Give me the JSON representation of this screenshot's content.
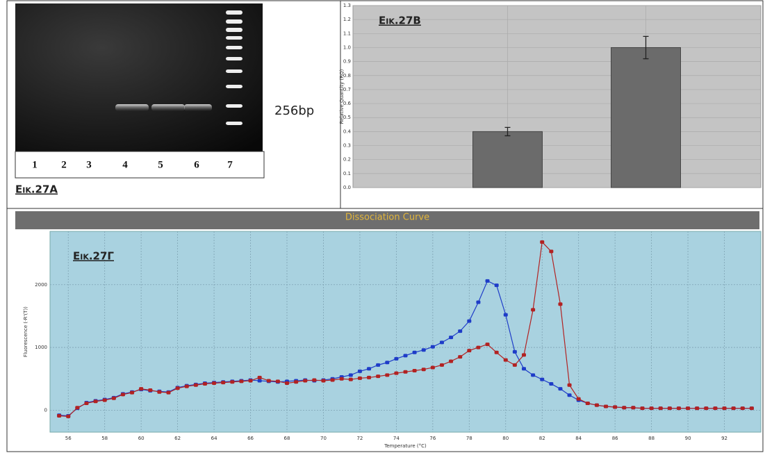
{
  "panels": {
    "gel": {
      "label": "Εικ.27Α",
      "lanes": [
        "1",
        "2",
        "3",
        "4",
        "5",
        "6",
        "7"
      ],
      "band_label": "256bp"
    }
  },
  "chart_data": [
    {
      "type": "bar",
      "label": "Εικ.27Β",
      "ylabel": "Relative Quantity (RQ)",
      "categories": [
        null,
        null
      ],
      "values": [
        0.4,
        1.0
      ],
      "errors": [
        0.03,
        0.08
      ],
      "color": "#6b6b6b",
      "ylim": [
        0,
        1.3
      ],
      "yticks": [
        {
          "value": 0,
          "label": "0.0"
        },
        0.1,
        0.2,
        0.3,
        0.4,
        0.5,
        0.6,
        0.7,
        0.8,
        0.9,
        {
          "value": 1,
          "label": "1.0"
        },
        1.1,
        1.2,
        1.3
      ],
      "grid": true
    },
    {
      "type": "line",
      "label": "Εικ.27Γ",
      "title": "Dissociation Curve",
      "xlabel": "Temperature (°C)",
      "ylabel": "Fluorescence (-R'(T))",
      "x": [
        55.5,
        56,
        56.5,
        57,
        57.5,
        58,
        58.5,
        59,
        59.5,
        60,
        60.5,
        61,
        61.5,
        62,
        62.5,
        63,
        63.5,
        64,
        64.5,
        65,
        65.5,
        66,
        66.5,
        67,
        67.5,
        68,
        68.5,
        69,
        69.5,
        70,
        70.5,
        71,
        71.5,
        72,
        72.5,
        73,
        73.5,
        74,
        74.5,
        75,
        75.5,
        76,
        76.5,
        77,
        77.5,
        78,
        78.5,
        79,
        79.5,
        80,
        80.5,
        81,
        81.5,
        82,
        82.5,
        83,
        83.5,
        84,
        84.5,
        85,
        85.5,
        86,
        86.5,
        87,
        87.5,
        88,
        88.5,
        89,
        89.5,
        90,
        90.5,
        91,
        91.5,
        92,
        92.5,
        93,
        93.5
      ],
      "series": [
        {
          "color": "#1e3cc8",
          "values": [
            -80,
            -90,
            30,
            120,
            150,
            170,
            200,
            260,
            290,
            330,
            310,
            300,
            290,
            360,
            390,
            410,
            430,
            440,
            450,
            460,
            470,
            480,
            470,
            460,
            450,
            460,
            470,
            480,
            470,
            480,
            500,
            530,
            560,
            620,
            660,
            720,
            760,
            820,
            870,
            920,
            960,
            1010,
            1080,
            1160,
            1260,
            1420,
            1720,
            2060,
            1990,
            1520,
            930,
            660,
            560,
            490,
            420,
            340,
            240,
            160,
            110,
            80,
            60,
            50,
            40,
            40,
            30,
            30,
            30,
            30,
            30,
            30,
            30,
            30,
            30,
            30,
            30,
            30,
            30
          ]
        },
        {
          "color": "#b22222",
          "values": [
            -90,
            -100,
            40,
            110,
            140,
            160,
            190,
            250,
            280,
            340,
            320,
            290,
            280,
            350,
            380,
            400,
            420,
            430,
            440,
            450,
            460,
            470,
            520,
            470,
            460,
            430,
            450,
            470,
            480,
            470,
            480,
            500,
            490,
            510,
            520,
            540,
            560,
            590,
            610,
            630,
            650,
            680,
            720,
            780,
            850,
            950,
            1000,
            1050,
            920,
            800,
            720,
            880,
            1600,
            2680,
            2530,
            1690,
            400,
            180,
            110,
            80,
            60,
            50,
            40,
            40,
            30,
            30,
            30,
            30,
            30,
            30,
            30,
            30,
            30,
            30,
            30,
            30,
            30
          ]
        }
      ],
      "xlim": [
        55,
        94
      ],
      "ylim": [
        -350,
        2850
      ],
      "xticks": [
        56,
        58,
        60,
        62,
        64,
        66,
        68,
        70,
        72,
        74,
        76,
        78,
        80,
        82,
        84,
        86,
        88,
        90,
        92
      ],
      "yticks": [
        0,
        1000,
        2000
      ],
      "grid": true
    }
  ]
}
